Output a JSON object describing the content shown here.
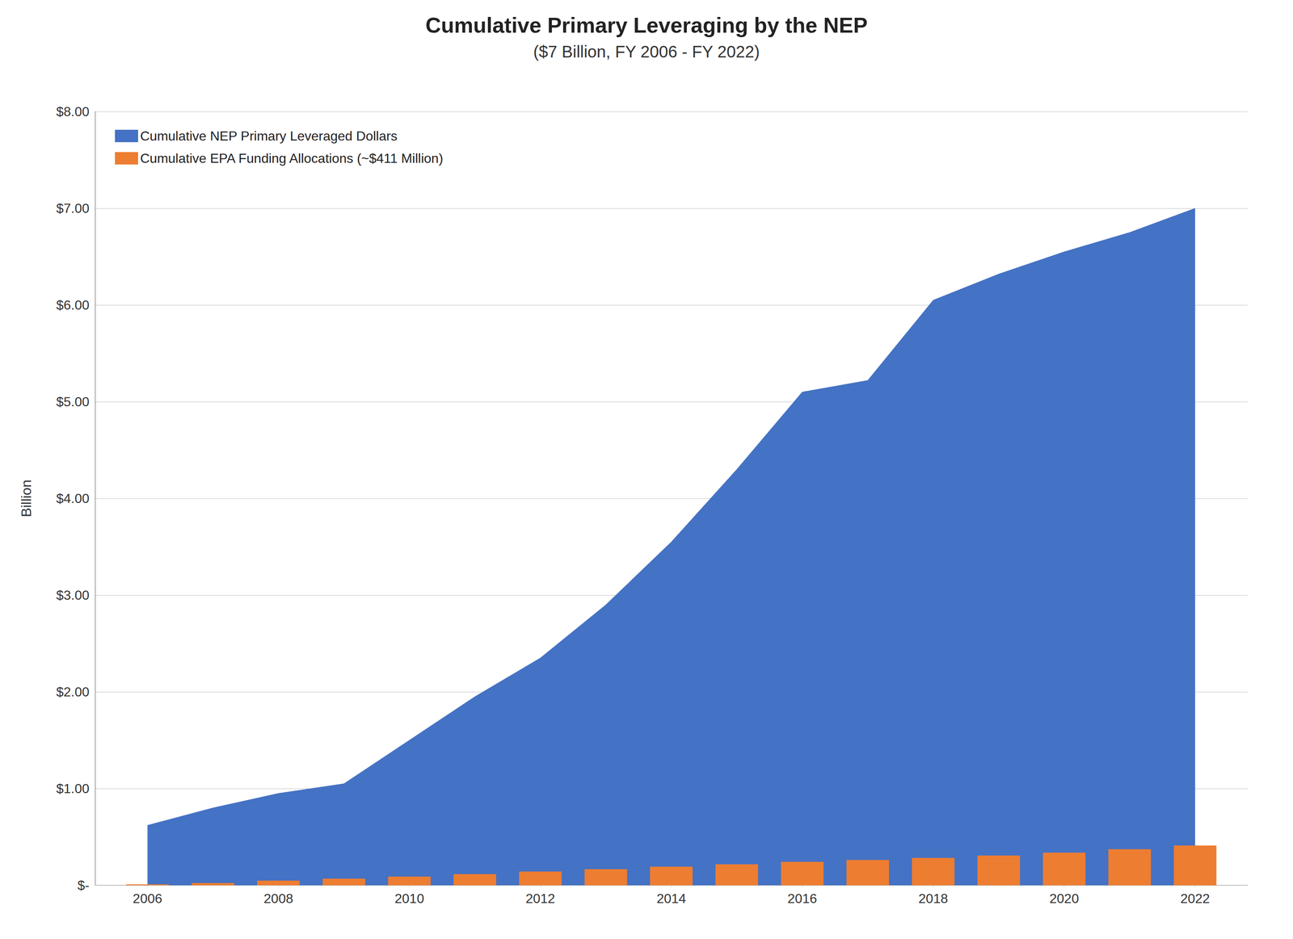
{
  "chart_data": {
    "type": "bar",
    "title": "Cumulative Primary Leveraging by the NEP",
    "subtitle": "($7 Billion, FY 2006 - FY 2022)",
    "y_label": "Billion",
    "x": [
      2006,
      2007,
      2008,
      2009,
      2010,
      2011,
      2012,
      2013,
      2014,
      2015,
      2016,
      2017,
      2018,
      2019,
      2020,
      2021,
      2022
    ],
    "series": [
      {
        "name": "Cumulative NEP Primary Leveraged Dollars",
        "type": "area",
        "color": "#4472C4",
        "values": [
          0.62,
          0.8,
          0.95,
          1.05,
          1.5,
          1.95,
          2.35,
          2.9,
          3.55,
          4.3,
          5.1,
          5.22,
          6.05,
          6.32,
          6.55,
          6.75,
          7.0
        ]
      },
      {
        "name": "Cumulative EPA Funding Allocations (~$411 Million)",
        "type": "bar",
        "color": "#ED7D31",
        "values": [
          0.01,
          0.024,
          0.048,
          0.068,
          0.09,
          0.115,
          0.142,
          0.167,
          0.192,
          0.217,
          0.242,
          0.262,
          0.283,
          0.308,
          0.338,
          0.373,
          0.411
        ]
      }
    ],
    "xlim": [
      2005.2,
      2022.8
    ],
    "xticks": [
      2006,
      2008,
      2010,
      2012,
      2014,
      2016,
      2018,
      2020,
      2022
    ],
    "ylim": [
      0,
      8.0
    ],
    "yticks": [
      {
        "value": 0,
        "label": "$-"
      },
      {
        "value": 1.0,
        "label": "$1.00"
      },
      {
        "value": 2.0,
        "label": "$2.00"
      },
      {
        "value": 3.0,
        "label": "$3.00"
      },
      {
        "value": 4.0,
        "label": "$4.00"
      },
      {
        "value": 5.0,
        "label": "$5.00"
      },
      {
        "value": 6.0,
        "label": "$6.00"
      },
      {
        "value": 7.0,
        "label": "$7.00"
      },
      {
        "value": 8.0,
        "label": "$8.00"
      }
    ],
    "grid": true,
    "legend": "upper left"
  }
}
